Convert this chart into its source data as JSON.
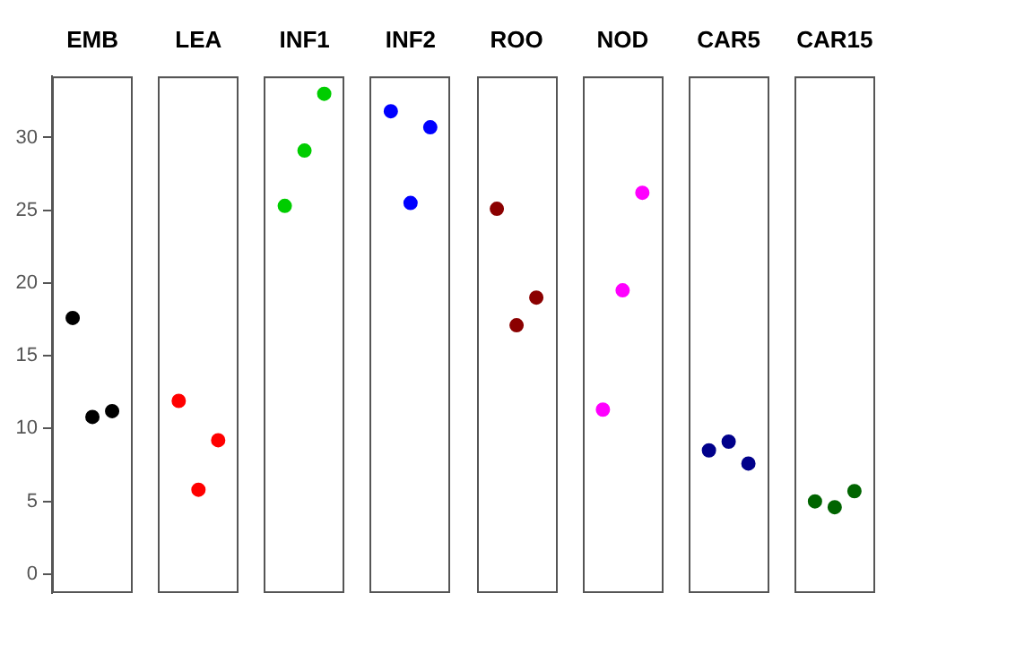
{
  "chart_data": {
    "type": "scatter",
    "categories": [
      "EMB",
      "LEA",
      "INF1",
      "INF2",
      "ROO",
      "NOD",
      "CAR5",
      "CAR15"
    ],
    "series": [
      {
        "values": [
          17.6,
          11.9,
          25.3,
          31.8,
          25.1,
          11.3,
          8.5,
          5.0
        ],
        "colors": [
          "#000000",
          "#ff0000",
          "#00cd00",
          "#0000ff",
          "#8b0000",
          "#ff00ff",
          "#00008b",
          "#006400"
        ]
      },
      {
        "values": [
          10.8,
          5.8,
          29.1,
          25.5,
          17.1,
          19.5,
          9.1,
          4.6
        ],
        "colors": [
          "#000000",
          "#ff0000",
          "#00cd00",
          "#0000ff",
          "#8b0000",
          "#ff00ff",
          "#00008b",
          "#006400"
        ]
      },
      {
        "values": [
          11.2,
          9.2,
          33.0,
          30.7,
          19.0,
          26.2,
          7.6,
          5.7
        ],
        "colors": [
          "#000000",
          "#ff0000",
          "#00cd00",
          "#0000ff",
          "#8b0000",
          "#ff00ff",
          "#00008b",
          "#006400"
        ]
      }
    ],
    "ylim": [
      -1.3,
      34.2
    ],
    "yticks": [
      0,
      5,
      10,
      15,
      20,
      25,
      30
    ],
    "marker": "circle"
  }
}
